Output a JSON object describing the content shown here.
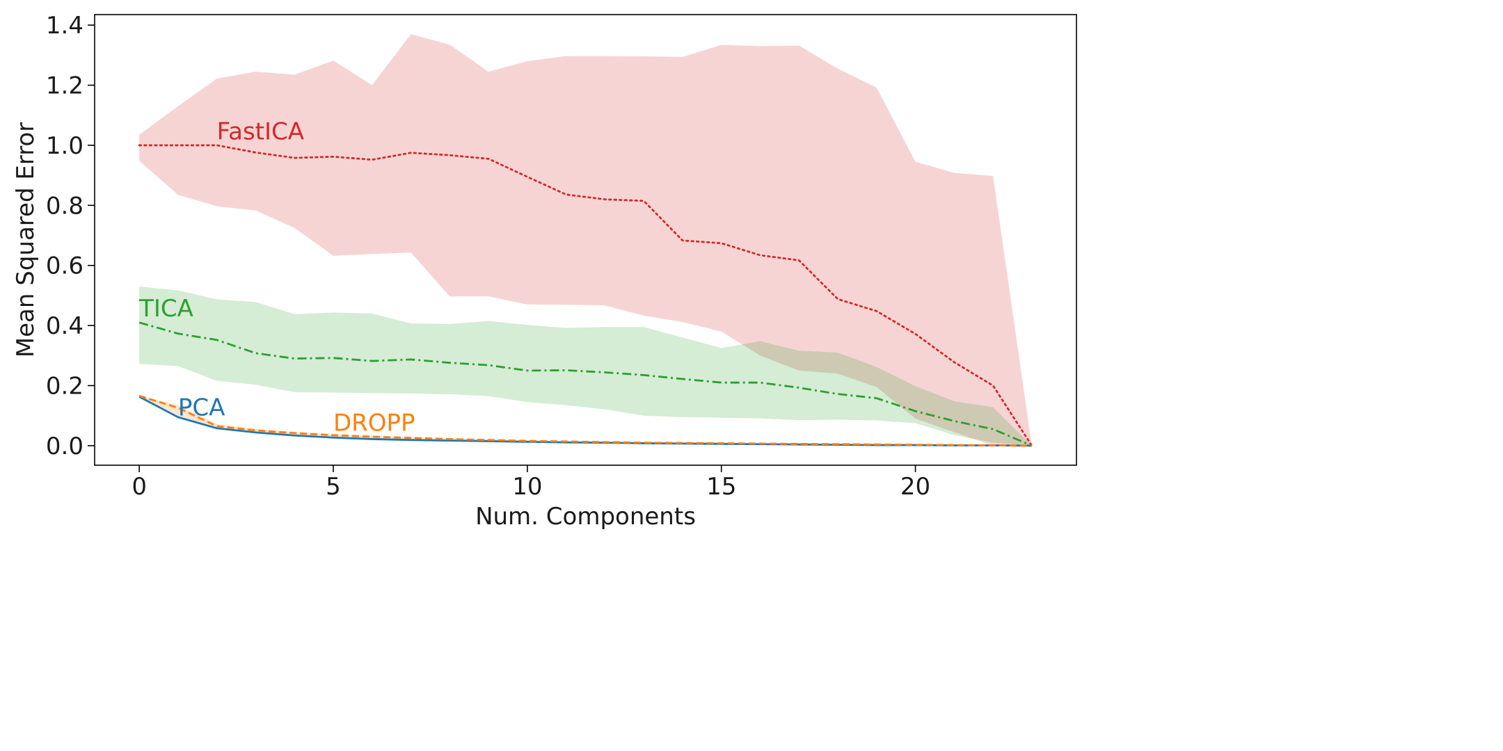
{
  "chart_data": {
    "type": "line",
    "title": "",
    "xlabel": "Num. Components",
    "ylabel": "Mean Squared Error",
    "xlim": [
      -1.15,
      24.15
    ],
    "ylim": [
      -0.065,
      1.435
    ],
    "x_ticks": [
      0,
      5,
      10,
      15,
      20
    ],
    "y_ticks": [
      0.0,
      0.2,
      0.4,
      0.6,
      0.8,
      1.0,
      1.2,
      1.4
    ],
    "y_tick_labels": [
      "0.0",
      "0.2",
      "0.4",
      "0.6",
      "0.8",
      "1.0",
      "1.2",
      "1.4"
    ],
    "grid": false,
    "legend": "none",
    "x": [
      0,
      1,
      2,
      3,
      4,
      5,
      6,
      7,
      8,
      9,
      10,
      11,
      12,
      13,
      14,
      15,
      16,
      17,
      18,
      19,
      20,
      21,
      22,
      23
    ],
    "series": [
      {
        "name": "FastICA",
        "color": "#d62728",
        "style": "dotted",
        "label_at": [
          2.0,
          1.02
        ],
        "values": [
          1.0,
          1.0,
          1.0,
          0.976,
          0.958,
          0.962,
          0.952,
          0.975,
          0.967,
          0.955,
          0.895,
          0.836,
          0.82,
          0.815,
          0.683,
          0.674,
          0.634,
          0.617,
          0.488,
          0.448,
          0.372,
          0.278,
          0.2,
          0.0
        ],
        "upper": [
          1.035,
          1.13,
          1.222,
          1.245,
          1.235,
          1.282,
          1.2,
          1.37,
          1.335,
          1.245,
          1.28,
          1.297,
          1.297,
          1.296,
          1.294,
          1.334,
          1.33,
          1.332,
          1.255,
          1.192,
          0.945,
          0.908,
          0.898,
          0.0
        ],
        "lower": [
          0.948,
          0.835,
          0.797,
          0.783,
          0.725,
          0.632,
          0.638,
          0.643,
          0.497,
          0.497,
          0.47,
          0.469,
          0.467,
          0.433,
          0.412,
          0.38,
          0.3,
          0.25,
          0.24,
          0.195,
          0.09,
          0.045,
          0.0,
          0.0
        ]
      },
      {
        "name": "TICA",
        "color": "#2ca02c",
        "style": "dashdot",
        "label_at": [
          0.0,
          0.43
        ],
        "values": [
          0.41,
          0.373,
          0.352,
          0.308,
          0.29,
          0.292,
          0.282,
          0.287,
          0.276,
          0.268,
          0.25,
          0.251,
          0.244,
          0.235,
          0.222,
          0.21,
          0.21,
          0.193,
          0.172,
          0.158,
          0.115,
          0.082,
          0.055,
          0.0
        ],
        "upper": [
          0.53,
          0.517,
          0.487,
          0.478,
          0.438,
          0.443,
          0.44,
          0.407,
          0.405,
          0.415,
          0.402,
          0.392,
          0.395,
          0.395,
          0.36,
          0.325,
          0.348,
          0.316,
          0.31,
          0.262,
          0.198,
          0.148,
          0.128,
          0.0
        ],
        "lower": [
          0.272,
          0.265,
          0.216,
          0.203,
          0.178,
          0.177,
          0.175,
          0.174,
          0.171,
          0.165,
          0.145,
          0.135,
          0.121,
          0.1,
          0.095,
          0.093,
          0.091,
          0.085,
          0.087,
          0.084,
          0.075,
          0.035,
          0.01,
          0.0
        ]
      },
      {
        "name": "PCA",
        "color": "#1f77b4",
        "style": "solid",
        "label_at": [
          1.0,
          0.1
        ],
        "values": [
          0.163,
          0.095,
          0.058,
          0.044,
          0.034,
          0.027,
          0.022,
          0.019,
          0.017,
          0.015,
          0.013,
          0.011,
          0.01,
          0.008,
          0.007,
          0.006,
          0.005,
          0.004,
          0.003,
          0.002,
          0.002,
          0.001,
          0.001,
          0.0
        ]
      },
      {
        "name": "DROPP",
        "color": "#ff7f0e",
        "style": "dashed",
        "label_at": [
          5.0,
          0.05
        ],
        "values": [
          0.166,
          0.126,
          0.065,
          0.051,
          0.042,
          0.035,
          0.03,
          0.026,
          0.022,
          0.019,
          0.016,
          0.014,
          0.012,
          0.01,
          0.009,
          0.008,
          0.007,
          0.006,
          0.005,
          0.004,
          0.003,
          0.002,
          0.001,
          0.0
        ],
        "upper": [
          0.166,
          0.135,
          0.072,
          0.056,
          0.046,
          0.038,
          0.032,
          0.028,
          0.024,
          0.021,
          0.018,
          0.015,
          0.013,
          0.011,
          0.01,
          0.009,
          0.008,
          0.007,
          0.006,
          0.005,
          0.004,
          0.003,
          0.002,
          0.0
        ],
        "lower": [
          0.166,
          0.1,
          0.06,
          0.046,
          0.037,
          0.03,
          0.025,
          0.021,
          0.018,
          0.016,
          0.014,
          0.012,
          0.01,
          0.009,
          0.008,
          0.007,
          0.006,
          0.005,
          0.004,
          0.003,
          0.002,
          0.001,
          0.0,
          0.0
        ]
      }
    ]
  }
}
